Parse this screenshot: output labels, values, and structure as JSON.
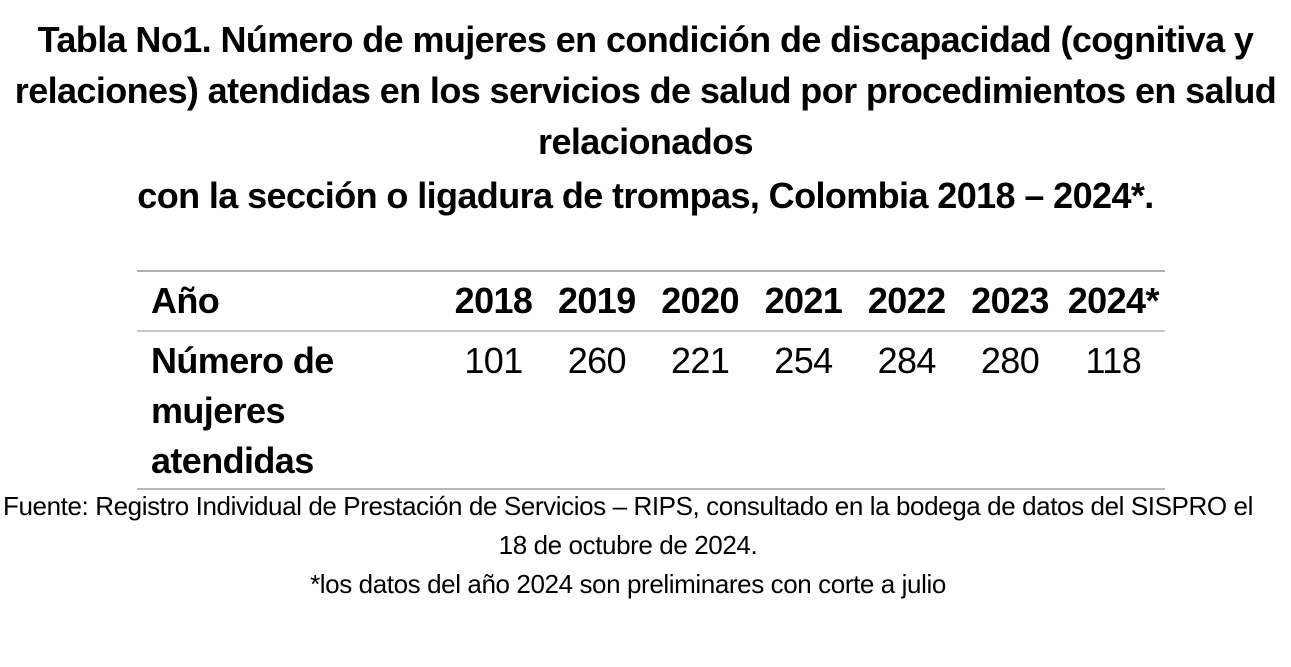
{
  "title": {
    "line1": "Tabla No1.  Número de mujeres en condición de discapacidad (cognitiva y",
    "line2": "relaciones) atendidas en los servicios de salud por procedimientos en salud",
    "line3": "relacionados",
    "line4": "con la sección o ligadura de trompas, Colombia 2018 – 2024*."
  },
  "table": {
    "header_label": "Año",
    "years": [
      "2018",
      "2019",
      "2020",
      "2021",
      "2022",
      "2023",
      "2024*"
    ],
    "row_label": {
      "line1": "Número de",
      "line2": "mujeres",
      "line3": "atendidas"
    },
    "values": [
      "101",
      "260",
      "221",
      "254",
      "284",
      "280",
      "118"
    ]
  },
  "footer": {
    "source_line1": "Fuente: Registro Individual de Prestación de Servicios – RIPS, consultado en la bodega de datos del SISPRO el",
    "source_line2": "18 de octubre de 2024.",
    "note": "*los datos del año 2024 son preliminares con corte a julio"
  }
}
